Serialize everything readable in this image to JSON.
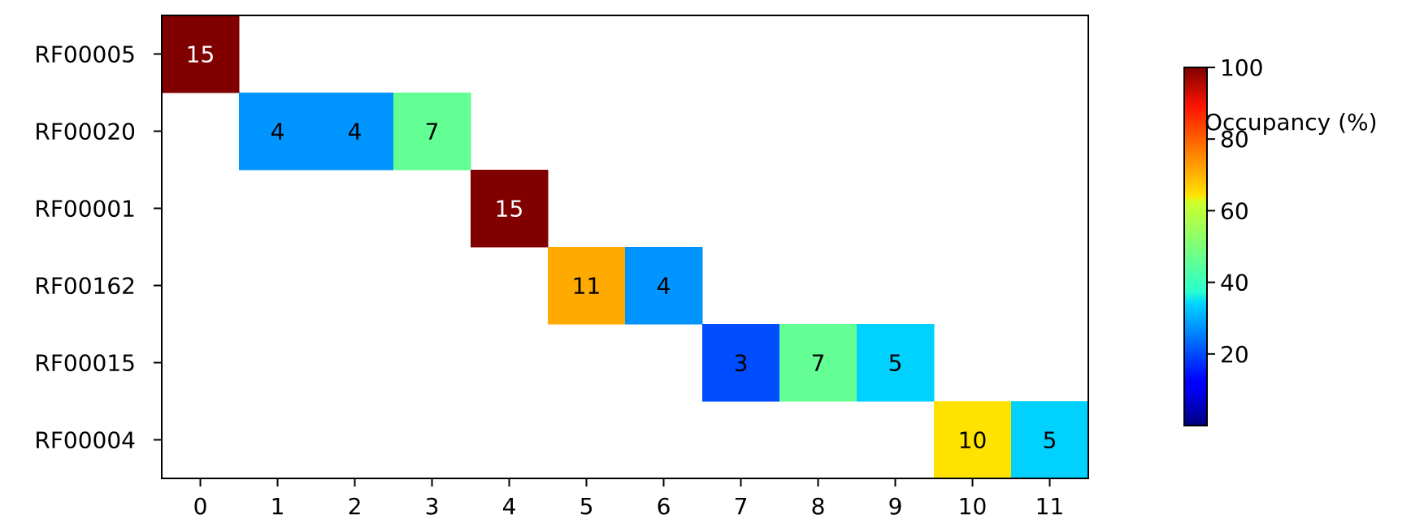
{
  "chart_data": {
    "type": "heatmap",
    "title": "",
    "xlabel": "",
    "ylabel": "",
    "x_categories": [
      "0",
      "1",
      "2",
      "3",
      "4",
      "5",
      "6",
      "7",
      "8",
      "9",
      "10",
      "11"
    ],
    "y_categories": [
      "RF00005",
      "RF00020",
      "RF00001",
      "RF00162",
      "RF00015",
      "RF00004"
    ],
    "cells": [
      {
        "row": "RF00005",
        "col": "0",
        "label": "15",
        "occupancy": 100
      },
      {
        "row": "RF00020",
        "col": "1",
        "label": "4",
        "occupancy": 27
      },
      {
        "row": "RF00020",
        "col": "2",
        "label": "4",
        "occupancy": 27
      },
      {
        "row": "RF00020",
        "col": "3",
        "label": "7",
        "occupancy": 47
      },
      {
        "row": "RF00001",
        "col": "4",
        "label": "15",
        "occupancy": 100
      },
      {
        "row": "RF00162",
        "col": "5",
        "label": "11",
        "occupancy": 73
      },
      {
        "row": "RF00162",
        "col": "6",
        "label": "4",
        "occupancy": 27
      },
      {
        "row": "RF00015",
        "col": "7",
        "label": "3",
        "occupancy": 20
      },
      {
        "row": "RF00015",
        "col": "8",
        "label": "7",
        "occupancy": 47
      },
      {
        "row": "RF00015",
        "col": "9",
        "label": "5",
        "occupancy": 33
      },
      {
        "row": "RF00004",
        "col": "10",
        "label": "10",
        "occupancy": 67
      },
      {
        "row": "RF00004",
        "col": "11",
        "label": "5",
        "occupancy": 33
      }
    ],
    "colorbar": {
      "label": "Occupancy (%)",
      "colormap": "jet",
      "range": [
        0,
        100
      ],
      "ticks": [
        "20",
        "40",
        "60",
        "80",
        "100"
      ]
    },
    "grid": false
  }
}
